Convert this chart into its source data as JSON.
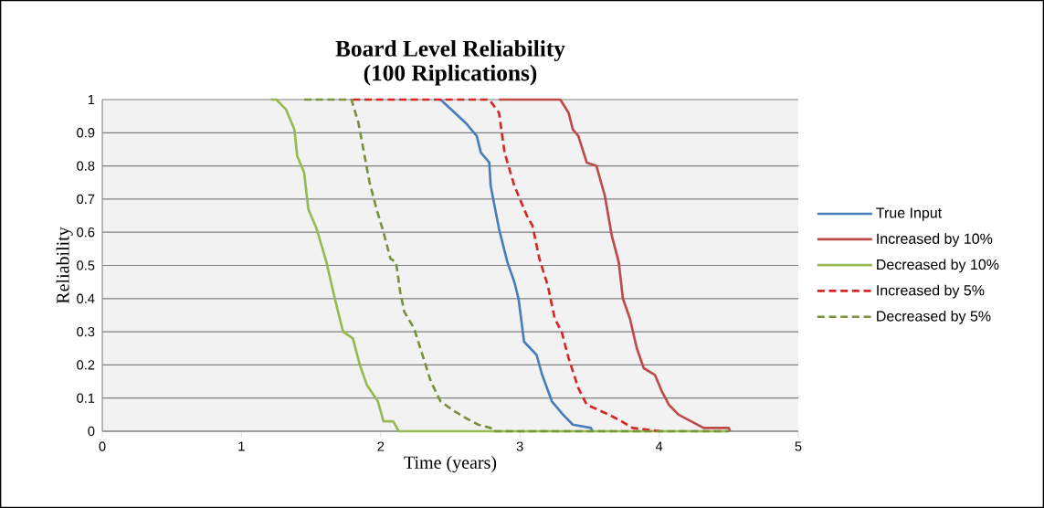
{
  "chart_data": {
    "type": "line",
    "title": "Board Level Reliability",
    "subtitle": "(100 Riplications)",
    "xlabel": "Time (years)",
    "ylabel": "Reliability",
    "xlim": [
      0,
      5
    ],
    "xticks": [
      0,
      1,
      2,
      3,
      4,
      5
    ],
    "ylim": [
      0,
      1
    ],
    "yticks": [
      0,
      0.1,
      0.2,
      0.3,
      0.4,
      0.5,
      0.6,
      0.7,
      0.8,
      0.9,
      1
    ],
    "grid": "y",
    "legend": "right",
    "series": [
      {
        "name": "True Input",
        "color": "#4a7ebb",
        "line_style": "solid",
        "x": [
          2.43,
          2.61,
          2.69,
          2.72,
          2.78,
          2.79,
          2.85,
          2.91,
          2.96,
          2.99,
          3.03,
          3.12,
          3.16,
          3.23,
          3.31,
          3.38,
          3.51,
          3.52
        ],
        "values": [
          1,
          0.93,
          0.89,
          0.84,
          0.81,
          0.74,
          0.61,
          0.51,
          0.45,
          0.4,
          0.27,
          0.23,
          0.17,
          0.09,
          0.05,
          0.02,
          0.01,
          0
        ]
      },
      {
        "name": "Increased by 10%",
        "color": "#be4b48",
        "line_style": "solid",
        "x": [
          2.85,
          3.29,
          3.35,
          3.38,
          3.42,
          3.48,
          3.55,
          3.61,
          3.66,
          3.71,
          3.74,
          3.79,
          3.84,
          3.89,
          3.97,
          4.02,
          4.07,
          4.14,
          4.23,
          4.32,
          4.5,
          4.51
        ],
        "values": [
          1,
          1,
          0.96,
          0.91,
          0.89,
          0.81,
          0.8,
          0.71,
          0.59,
          0.51,
          0.4,
          0.34,
          0.25,
          0.19,
          0.17,
          0.12,
          0.08,
          0.05,
          0.03,
          0.01,
          0.01,
          0
        ]
      },
      {
        "name": "Decreased by 10%",
        "color": "#98b954",
        "line_style": "solid",
        "x": [
          1.21,
          1.25,
          1.32,
          1.38,
          1.4,
          1.45,
          1.48,
          1.54,
          1.61,
          1.67,
          1.73,
          1.8,
          1.85,
          1.9,
          1.98,
          2.02,
          2.09,
          2.13,
          4.5
        ],
        "values": [
          1,
          1,
          0.97,
          0.91,
          0.83,
          0.78,
          0.67,
          0.61,
          0.51,
          0.4,
          0.3,
          0.28,
          0.2,
          0.14,
          0.09,
          0.03,
          0.03,
          0,
          0
        ]
      },
      {
        "name": "Increased by 5%",
        "color": "#d62728",
        "line_style": "dashed",
        "x": [
          1.8,
          2.78,
          2.85,
          2.89,
          2.96,
          3.05,
          3.09,
          3.14,
          3.2,
          3.25,
          3.3,
          3.35,
          3.42,
          3.48,
          3.64,
          3.73,
          3.81,
          4.01
        ],
        "values": [
          1,
          1,
          0.96,
          0.84,
          0.74,
          0.65,
          0.62,
          0.52,
          0.44,
          0.34,
          0.3,
          0.22,
          0.13,
          0.08,
          0.05,
          0.03,
          0.01,
          0
        ]
      },
      {
        "name": "Decreased by 5%",
        "color": "#77933c",
        "line_style": "dashed",
        "x": [
          1.45,
          1.79,
          1.84,
          1.88,
          1.92,
          1.97,
          2.02,
          2.07,
          2.11,
          2.14,
          2.17,
          2.24,
          2.3,
          2.36,
          2.43,
          2.53,
          2.61,
          2.7,
          2.79,
          2.8,
          4.5
        ],
        "values": [
          1,
          1,
          0.93,
          0.84,
          0.75,
          0.67,
          0.6,
          0.52,
          0.51,
          0.42,
          0.36,
          0.31,
          0.23,
          0.15,
          0.09,
          0.06,
          0.04,
          0.02,
          0.01,
          0,
          0
        ]
      }
    ]
  }
}
